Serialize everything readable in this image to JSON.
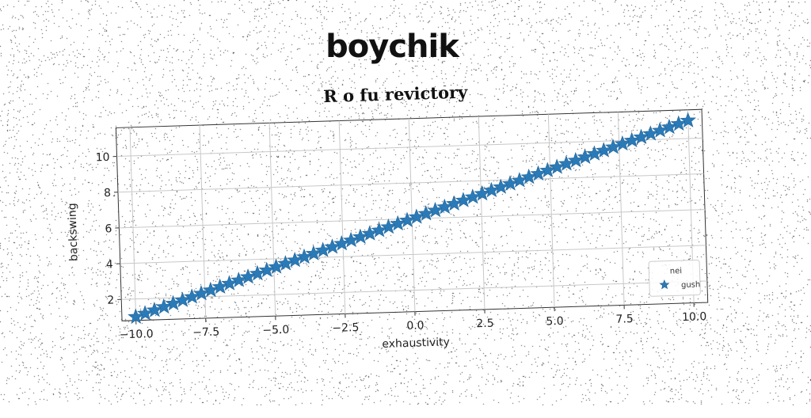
{
  "page": {
    "headline": "boychik"
  },
  "chart_data": {
    "type": "scatter",
    "title": "R o fu revictory",
    "xlabel": "exhaustivity",
    "ylabel": "backswing",
    "xlim": [
      -10.5,
      10.5
    ],
    "ylim": [
      0.8,
      11.6
    ],
    "xticks": [
      -10.0,
      -7.5,
      -5.0,
      -2.5,
      0.0,
      2.5,
      5.0,
      7.5,
      10.0
    ],
    "xtick_labels": [
      "−10.0",
      "−7.5",
      "−5.0",
      "−2.5",
      "0.0",
      "2.5",
      "5.0",
      "7.5",
      "10.0"
    ],
    "yticks": [
      2,
      4,
      6,
      8,
      10
    ],
    "ytick_labels": [
      "2",
      "4",
      "6",
      "8",
      "10"
    ],
    "grid": true,
    "legend": {
      "title": "nei",
      "placement": "lower-right",
      "entries": [
        "gush"
      ]
    },
    "series": [
      {
        "name": "gush",
        "marker": "star",
        "color": "#2a7ab8",
        "x_start": -10.0,
        "x_end": 10.0,
        "count": 60,
        "y_start": 1.0,
        "y_end": 11.0
      }
    ]
  }
}
